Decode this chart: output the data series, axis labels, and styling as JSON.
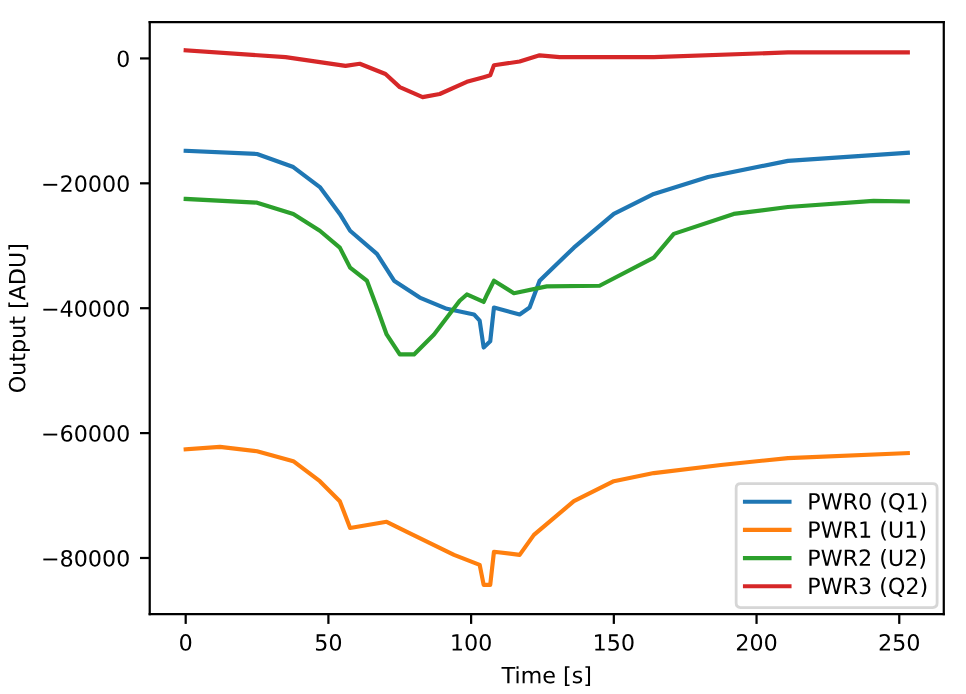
{
  "chart_data": {
    "type": "line",
    "xlabel": "Time [s]",
    "ylabel": "Output [ADU]",
    "xlim": [
      -12.6,
      265.6
    ],
    "ylim": [
      -89000,
      5800
    ],
    "xticks": [
      0,
      50,
      100,
      150,
      200,
      250
    ],
    "yticks": [
      {
        "value": 0,
        "label": "0"
      },
      {
        "value": -20000,
        "label": "−20000"
      },
      {
        "value": -40000,
        "label": "−40000"
      },
      {
        "value": -60000,
        "label": "−60000"
      },
      {
        "value": -80000,
        "label": "−80000"
      }
    ],
    "grid": false,
    "legend": "bottom right",
    "marker": "none",
    "line_style": "solid",
    "series": [
      {
        "name": "PWR0 (Q1)",
        "color": "#1f77b4",
        "x": [
          0,
          25,
          37.7,
          47,
          54,
          57.6,
          67,
          73,
          82,
          91.5,
          101,
          103,
          104.4,
          106.7,
          108,
          117,
          120.5,
          124,
          136,
          150,
          164,
          183,
          211,
          253
        ],
        "values": [
          -14800,
          -15300,
          -17400,
          -20600,
          -24900,
          -27600,
          -31300,
          -35600,
          -38300,
          -40100,
          -41000,
          -42000,
          -46300,
          -45300,
          -39900,
          -41000,
          -39900,
          -35600,
          -30300,
          -24900,
          -21700,
          -19000,
          -16400,
          -15100
        ]
      },
      {
        "name": "PWR1 (U1)",
        "color": "#ff7f0e",
        "x": [
          0,
          12,
          25,
          37.7,
          47,
          54,
          57.6,
          70.4,
          77.5,
          94,
          103,
          104.4,
          106.7,
          108,
          117,
          122,
          136,
          150,
          164,
          187.5,
          211,
          253
        ],
        "values": [
          -62600,
          -62200,
          -62900,
          -64500,
          -67700,
          -70900,
          -75200,
          -74200,
          -75800,
          -79500,
          -81100,
          -84300,
          -84300,
          -79000,
          -79500,
          -76300,
          -70900,
          -67700,
          -66400,
          -65100,
          -64000,
          -63200
        ]
      },
      {
        "name": "PWR2 (U2)",
        "color": "#2ca02c",
        "x": [
          0,
          25,
          37.7,
          47,
          54,
          57.6,
          63.5,
          67,
          70.4,
          75,
          80,
          87,
          96,
          98.5,
          104.4,
          105.6,
          108,
          115,
          126.5,
          145,
          164,
          171,
          192,
          211,
          241,
          253
        ],
        "values": [
          -22500,
          -23100,
          -24900,
          -27600,
          -30300,
          -33500,
          -35600,
          -39900,
          -44200,
          -47400,
          -47400,
          -44200,
          -38800,
          -37800,
          -39000,
          -37800,
          -35600,
          -37600,
          -36500,
          -36400,
          -31900,
          -28100,
          -24900,
          -23800,
          -22800,
          -22900
        ]
      },
      {
        "name": "PWR3 (Q2)",
        "color": "#d62728",
        "x": [
          0,
          35,
          56,
          61,
          70,
          75,
          83,
          89,
          98.5,
          104.4,
          106.7,
          108,
          117,
          124,
          131,
          164,
          211,
          253
        ],
        "values": [
          1300,
          200,
          -1200,
          -850,
          -2500,
          -4600,
          -6200,
          -5700,
          -3750,
          -3000,
          -2700,
          -1100,
          -500,
          500,
          200,
          200,
          960,
          960
        ]
      }
    ]
  }
}
